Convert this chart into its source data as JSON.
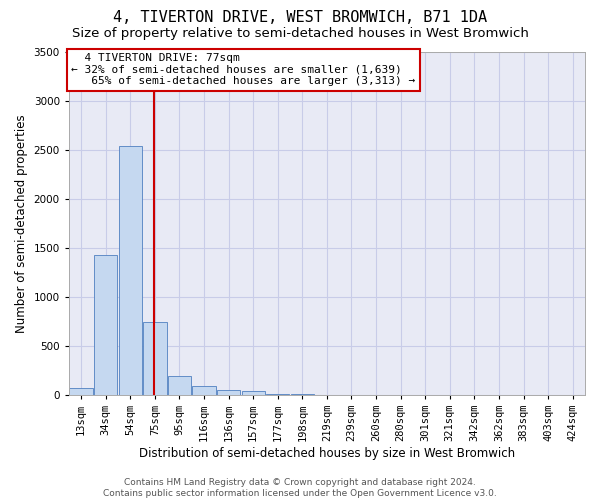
{
  "title": "4, TIVERTON DRIVE, WEST BROMWICH, B71 1DA",
  "subtitle": "Size of property relative to semi-detached houses in West Bromwich",
  "xlabel": "Distribution of semi-detached houses by size in West Bromwich",
  "ylabel": "Number of semi-detached properties",
  "footer_line1": "Contains HM Land Registry data © Crown copyright and database right 2024.",
  "footer_line2": "Contains public sector information licensed under the Open Government Licence v3.0.",
  "categories": [
    "13sqm",
    "34sqm",
    "54sqm",
    "75sqm",
    "95sqm",
    "116sqm",
    "136sqm",
    "157sqm",
    "177sqm",
    "198sqm",
    "219sqm",
    "239sqm",
    "260sqm",
    "280sqm",
    "301sqm",
    "321sqm",
    "342sqm",
    "362sqm",
    "383sqm",
    "403sqm",
    "424sqm"
  ],
  "values": [
    75,
    1430,
    2540,
    740,
    190,
    95,
    55,
    35,
    10,
    5,
    0,
    0,
    0,
    0,
    0,
    0,
    0,
    0,
    0,
    0,
    0
  ],
  "bar_color": "#c5d8f0",
  "bar_edge_color": "#5080c0",
  "grid_color": "#c8cce8",
  "background_color": "#e8eaf5",
  "pct_smaller": 32,
  "n_smaller": 1639,
  "pct_larger": 65,
  "n_larger": 3313,
  "red_line_color": "#cc0000",
  "annotation_box_color": "#cc0000",
  "ylim": [
    0,
    3500
  ],
  "yticks": [
    0,
    500,
    1000,
    1500,
    2000,
    2500,
    3000,
    3500
  ],
  "title_fontsize": 11,
  "subtitle_fontsize": 9.5,
  "axis_label_fontsize": 8.5,
  "tick_fontsize": 7.5,
  "annotation_fontsize": 8,
  "footer_fontsize": 6.5
}
